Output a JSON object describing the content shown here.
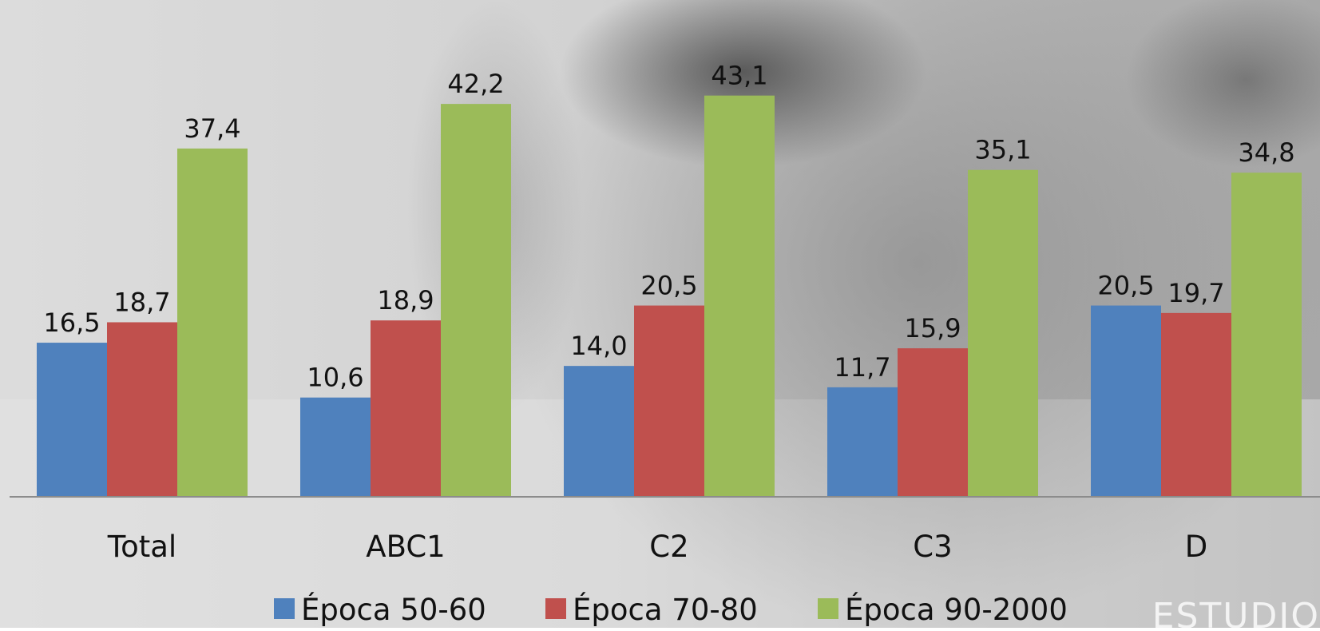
{
  "chart_data": {
    "type": "bar",
    "categories": [
      "Total",
      "ABC1",
      "C2",
      "C3",
      "D"
    ],
    "series": [
      {
        "name": "Época 50-60",
        "values": [
          16.5,
          10.6,
          14.0,
          11.7,
          20.5
        ],
        "labels": [
          "16,5",
          "10,6",
          "14,0",
          "11,7",
          "20,5"
        ],
        "color": "#4F81BD"
      },
      {
        "name": "Época 70-80",
        "values": [
          18.7,
          18.9,
          20.5,
          15.9,
          19.7
        ],
        "labels": [
          "18,7",
          "18,9",
          "20,5",
          "15,9",
          "19,7"
        ],
        "color": "#C0504D"
      },
      {
        "name": "Época 90-2000",
        "values": [
          37.4,
          42.2,
          43.1,
          35.1,
          34.8
        ],
        "labels": [
          "37,4",
          "42,2",
          "43,1",
          "35,1",
          "34,8"
        ],
        "color": "#9BBB59"
      }
    ],
    "ylim": [
      0,
      48.4
    ],
    "grid": false,
    "legend_position": "bottom",
    "watermark_text": "ESTUDIO"
  }
}
